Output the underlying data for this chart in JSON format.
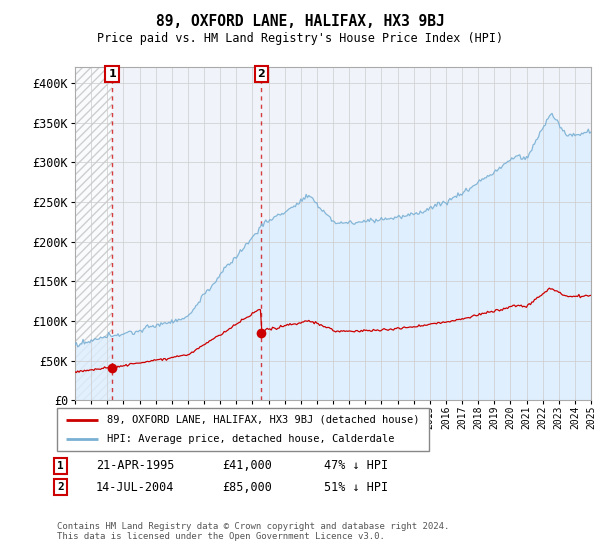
{
  "title": "89, OXFORD LANE, HALIFAX, HX3 9BJ",
  "subtitle": "Price paid vs. HM Land Registry's House Price Index (HPI)",
  "ylim": [
    0,
    420000
  ],
  "yticks": [
    0,
    50000,
    100000,
    150000,
    200000,
    250000,
    300000,
    350000,
    400000
  ],
  "ytick_labels": [
    "£0",
    "£50K",
    "£100K",
    "£150K",
    "£200K",
    "£250K",
    "£300K",
    "£350K",
    "£400K"
  ],
  "sale1_year": 1995.3,
  "sale1_price": 41000,
  "sale2_year": 2004.55,
  "sale2_price": 85000,
  "sale1_date_str": "21-APR-1995",
  "sale1_pct": "47% ↓ HPI",
  "sale2_date_str": "14-JUL-2004",
  "sale2_pct": "51% ↓ HPI",
  "sale1_price_str": "£41,000",
  "sale2_price_str": "£85,000",
  "red_color": "#cc0000",
  "blue_color": "#7ab0d4",
  "fill_color": "#ddeeff",
  "hatch_fill_color": "#e8f0f8",
  "grid_color": "#cccccc",
  "bg_color": "#f0f4fa",
  "legend_label_red": "89, OXFORD LANE, HALIFAX, HX3 9BJ (detached house)",
  "legend_label_blue": "HPI: Average price, detached house, Calderdale",
  "footer": "Contains HM Land Registry data © Crown copyright and database right 2024.\nThis data is licensed under the Open Government Licence v3.0.",
  "x_start_year": 1993,
  "x_end_year": 2025
}
